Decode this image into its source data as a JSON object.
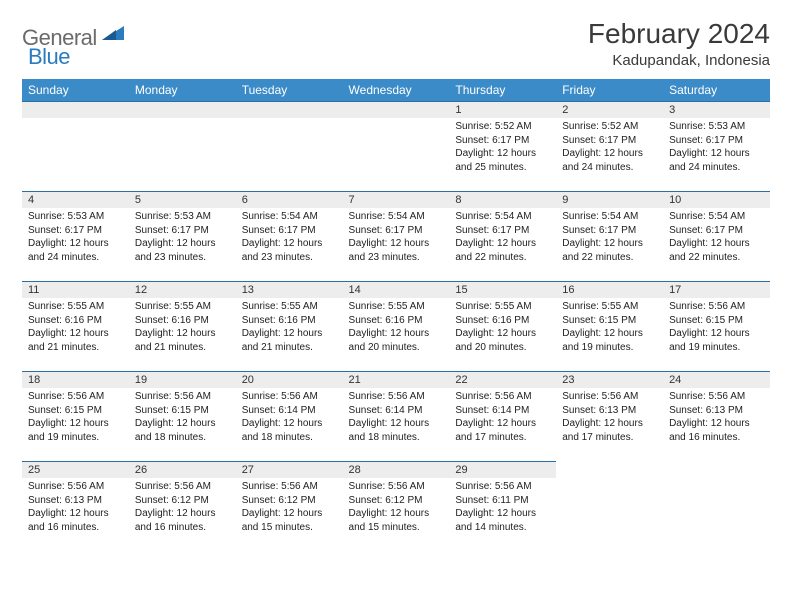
{
  "brand": {
    "part1": "General",
    "part2": "Blue"
  },
  "title": "February 2024",
  "location": "Kadupandak, Indonesia",
  "colors": {
    "header_bg": "#3b8bc8",
    "header_text": "#ffffff",
    "daybar_bg": "#ededed",
    "daybar_border": "#2b6fa3",
    "logo_gray": "#6b6b6b",
    "logo_blue": "#2b7bbf"
  },
  "weekdays": [
    "Sunday",
    "Monday",
    "Tuesday",
    "Wednesday",
    "Thursday",
    "Friday",
    "Saturday"
  ],
  "weeks": [
    [
      null,
      null,
      null,
      null,
      {
        "n": "1",
        "sr": "Sunrise: 5:52 AM",
        "ss": "Sunset: 6:17 PM",
        "dl": "Daylight: 12 hours and 25 minutes."
      },
      {
        "n": "2",
        "sr": "Sunrise: 5:52 AM",
        "ss": "Sunset: 6:17 PM",
        "dl": "Daylight: 12 hours and 24 minutes."
      },
      {
        "n": "3",
        "sr": "Sunrise: 5:53 AM",
        "ss": "Sunset: 6:17 PM",
        "dl": "Daylight: 12 hours and 24 minutes."
      }
    ],
    [
      {
        "n": "4",
        "sr": "Sunrise: 5:53 AM",
        "ss": "Sunset: 6:17 PM",
        "dl": "Daylight: 12 hours and 24 minutes."
      },
      {
        "n": "5",
        "sr": "Sunrise: 5:53 AM",
        "ss": "Sunset: 6:17 PM",
        "dl": "Daylight: 12 hours and 23 minutes."
      },
      {
        "n": "6",
        "sr": "Sunrise: 5:54 AM",
        "ss": "Sunset: 6:17 PM",
        "dl": "Daylight: 12 hours and 23 minutes."
      },
      {
        "n": "7",
        "sr": "Sunrise: 5:54 AM",
        "ss": "Sunset: 6:17 PM",
        "dl": "Daylight: 12 hours and 23 minutes."
      },
      {
        "n": "8",
        "sr": "Sunrise: 5:54 AM",
        "ss": "Sunset: 6:17 PM",
        "dl": "Daylight: 12 hours and 22 minutes."
      },
      {
        "n": "9",
        "sr": "Sunrise: 5:54 AM",
        "ss": "Sunset: 6:17 PM",
        "dl": "Daylight: 12 hours and 22 minutes."
      },
      {
        "n": "10",
        "sr": "Sunrise: 5:54 AM",
        "ss": "Sunset: 6:17 PM",
        "dl": "Daylight: 12 hours and 22 minutes."
      }
    ],
    [
      {
        "n": "11",
        "sr": "Sunrise: 5:55 AM",
        "ss": "Sunset: 6:16 PM",
        "dl": "Daylight: 12 hours and 21 minutes."
      },
      {
        "n": "12",
        "sr": "Sunrise: 5:55 AM",
        "ss": "Sunset: 6:16 PM",
        "dl": "Daylight: 12 hours and 21 minutes."
      },
      {
        "n": "13",
        "sr": "Sunrise: 5:55 AM",
        "ss": "Sunset: 6:16 PM",
        "dl": "Daylight: 12 hours and 21 minutes."
      },
      {
        "n": "14",
        "sr": "Sunrise: 5:55 AM",
        "ss": "Sunset: 6:16 PM",
        "dl": "Daylight: 12 hours and 20 minutes."
      },
      {
        "n": "15",
        "sr": "Sunrise: 5:55 AM",
        "ss": "Sunset: 6:16 PM",
        "dl": "Daylight: 12 hours and 20 minutes."
      },
      {
        "n": "16",
        "sr": "Sunrise: 5:55 AM",
        "ss": "Sunset: 6:15 PM",
        "dl": "Daylight: 12 hours and 19 minutes."
      },
      {
        "n": "17",
        "sr": "Sunrise: 5:56 AM",
        "ss": "Sunset: 6:15 PM",
        "dl": "Daylight: 12 hours and 19 minutes."
      }
    ],
    [
      {
        "n": "18",
        "sr": "Sunrise: 5:56 AM",
        "ss": "Sunset: 6:15 PM",
        "dl": "Daylight: 12 hours and 19 minutes."
      },
      {
        "n": "19",
        "sr": "Sunrise: 5:56 AM",
        "ss": "Sunset: 6:15 PM",
        "dl": "Daylight: 12 hours and 18 minutes."
      },
      {
        "n": "20",
        "sr": "Sunrise: 5:56 AM",
        "ss": "Sunset: 6:14 PM",
        "dl": "Daylight: 12 hours and 18 minutes."
      },
      {
        "n": "21",
        "sr": "Sunrise: 5:56 AM",
        "ss": "Sunset: 6:14 PM",
        "dl": "Daylight: 12 hours and 18 minutes."
      },
      {
        "n": "22",
        "sr": "Sunrise: 5:56 AM",
        "ss": "Sunset: 6:14 PM",
        "dl": "Daylight: 12 hours and 17 minutes."
      },
      {
        "n": "23",
        "sr": "Sunrise: 5:56 AM",
        "ss": "Sunset: 6:13 PM",
        "dl": "Daylight: 12 hours and 17 minutes."
      },
      {
        "n": "24",
        "sr": "Sunrise: 5:56 AM",
        "ss": "Sunset: 6:13 PM",
        "dl": "Daylight: 12 hours and 16 minutes."
      }
    ],
    [
      {
        "n": "25",
        "sr": "Sunrise: 5:56 AM",
        "ss": "Sunset: 6:13 PM",
        "dl": "Daylight: 12 hours and 16 minutes."
      },
      {
        "n": "26",
        "sr": "Sunrise: 5:56 AM",
        "ss": "Sunset: 6:12 PM",
        "dl": "Daylight: 12 hours and 16 minutes."
      },
      {
        "n": "27",
        "sr": "Sunrise: 5:56 AM",
        "ss": "Sunset: 6:12 PM",
        "dl": "Daylight: 12 hours and 15 minutes."
      },
      {
        "n": "28",
        "sr": "Sunrise: 5:56 AM",
        "ss": "Sunset: 6:12 PM",
        "dl": "Daylight: 12 hours and 15 minutes."
      },
      {
        "n": "29",
        "sr": "Sunrise: 5:56 AM",
        "ss": "Sunset: 6:11 PM",
        "dl": "Daylight: 12 hours and 14 minutes."
      },
      null,
      null
    ]
  ]
}
